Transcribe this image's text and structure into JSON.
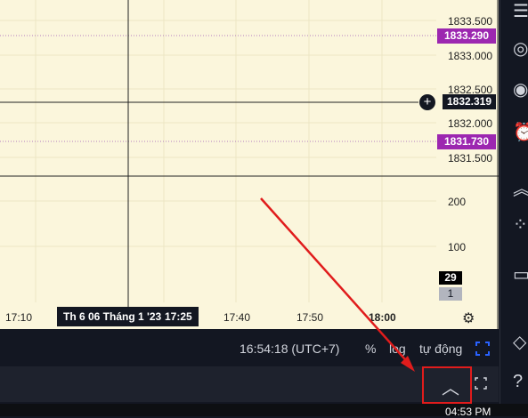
{
  "price_axis": {
    "labels": [
      "1833.500",
      "1833.000",
      "1832.500",
      "1832.000",
      "1831.500"
    ],
    "tags": [
      {
        "value": "1833.290",
        "color": "#9c27b0"
      },
      {
        "value": "1832.319",
        "color": "#131722"
      },
      {
        "value": "1831.730",
        "color": "#9c27b0"
      }
    ]
  },
  "volume_axis": {
    "labels": [
      "200",
      "100"
    ],
    "tag_black": "29",
    "tag_gray": "1"
  },
  "time_axis": {
    "labels": [
      "17:10",
      "17:40",
      "17:50",
      "18:00"
    ],
    "crosshair_date": "Th 6 06 Tháng 1 '23",
    "crosshair_time": "17:25"
  },
  "bottom_bar": {
    "clock": "16:54:18 (UTC+7)",
    "percent": "%",
    "log": "log",
    "auto": "tự động"
  },
  "taskbar": {
    "time": "04:53 PM"
  },
  "icons": [
    "plus-circle-icon",
    "gear-icon",
    "expand-icon",
    "chevron-up-icon",
    "fullscreen-icon",
    "alert-icon",
    "layers-icon",
    "help-icon"
  ]
}
